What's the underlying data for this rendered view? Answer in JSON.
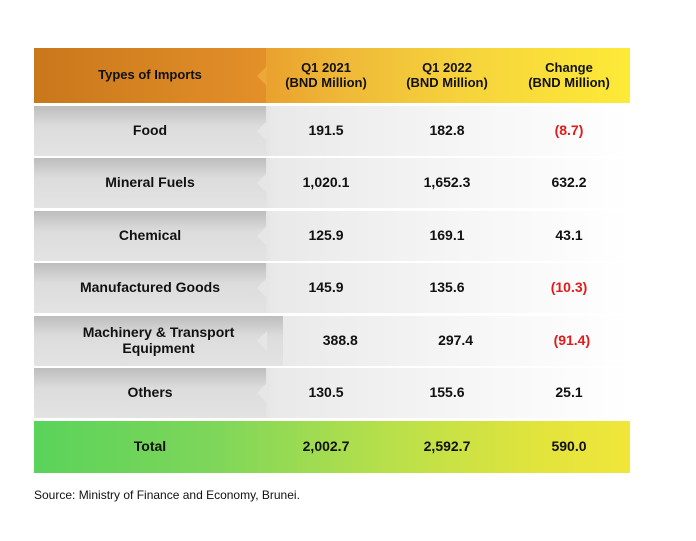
{
  "chart_data": {
    "type": "table",
    "title": "",
    "columns": [
      "Types of Imports",
      "Q1 2021\n(BND Million)",
      "Q1 2022\n(BND Million)",
      "Change\n(BND Million)"
    ],
    "header": {
      "col0": "Types of Imports",
      "col1_line1": "Q1 2021",
      "col1_line2": "(BND Million)",
      "col2_line1": "Q1 2022",
      "col2_line2": "(BND Million)",
      "col3_line1": "Change",
      "col3_line2": "(BND Million)"
    },
    "rows": [
      {
        "type": "Food",
        "q1_2021": "191.5",
        "q1_2022": "182.8",
        "change": "(8.7)"
      },
      {
        "type": "Mineral Fuels",
        "q1_2021": "1,020.1",
        "q1_2022": "1,652.3",
        "change": "632.2"
      },
      {
        "type": "Chemical",
        "q1_2021": "125.9",
        "q1_2022": "169.1",
        "change": "43.1"
      },
      {
        "type": "Manufactured Goods",
        "q1_2021": "145.9",
        "q1_2022": "135.6",
        "change": "(10.3)"
      },
      {
        "type": "Machinery & Transport Equipment",
        "q1_2021": "388.8",
        "q1_2022": "297.4",
        "change": "(91.4)"
      },
      {
        "type": "Others",
        "q1_2021": "130.5",
        "q1_2022": "155.6",
        "change": "25.1"
      }
    ],
    "total": {
      "type": "Total",
      "q1_2021": "2,002.7",
      "q1_2022": "2,592.7",
      "change": "590.0"
    },
    "colors": {
      "negative": "#e01b1b",
      "header_left": "#d8841f",
      "header_right": "#fdea37",
      "total_left": "#5ad35a",
      "total_right": "#f1e63a"
    }
  },
  "source": "Source: Ministry of Finance and Economy, Brunei."
}
